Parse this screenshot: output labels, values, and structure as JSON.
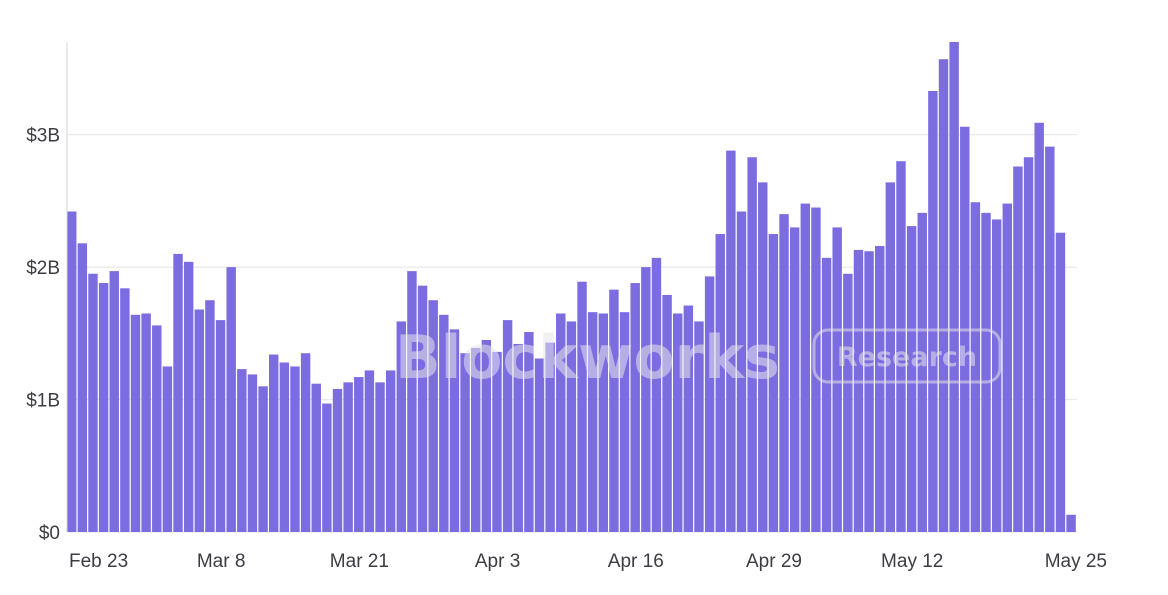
{
  "chart_data": {
    "type": "bar",
    "title": "",
    "xlabel": "",
    "ylabel": "",
    "y_unit": "USD billions",
    "ylim": [
      0,
      3.7
    ],
    "y_ticks": [
      {
        "value": 0,
        "label": "$0"
      },
      {
        "value": 1,
        "label": "$1B"
      },
      {
        "value": 2,
        "label": "$2B"
      },
      {
        "value": 3,
        "label": "$3B"
      }
    ],
    "x_ticks": [
      {
        "index": 0,
        "label": "Feb 23"
      },
      {
        "index": 14,
        "label": "Mar 8"
      },
      {
        "index": 27,
        "label": "Mar 21"
      },
      {
        "index": 40,
        "label": "Apr 3"
      },
      {
        "index": 53,
        "label": "Apr 16"
      },
      {
        "index": 66,
        "label": "Apr 29"
      },
      {
        "index": 79,
        "label": "May 12"
      },
      {
        "index": 92,
        "label": "May 25"
      }
    ],
    "bar_color": "#7b6cdf",
    "start_date": "Feb 23",
    "values": [
      2.42,
      2.18,
      1.95,
      1.88,
      1.97,
      1.84,
      1.64,
      1.65,
      1.56,
      1.25,
      2.1,
      2.04,
      1.68,
      1.75,
      1.6,
      2.0,
      1.23,
      1.19,
      1.1,
      1.34,
      1.28,
      1.25,
      1.35,
      1.12,
      0.97,
      1.08,
      1.13,
      1.17,
      1.22,
      1.13,
      1.22,
      1.59,
      1.97,
      1.86,
      1.75,
      1.64,
      1.53,
      1.35,
      1.39,
      1.45,
      1.36,
      1.6,
      1.42,
      1.51,
      1.31,
      1.43,
      1.65,
      1.59,
      1.89,
      1.66,
      1.65,
      1.83,
      1.66,
      1.88,
      2.0,
      2.07,
      1.79,
      1.65,
      1.71,
      1.59,
      1.93,
      2.25,
      2.88,
      2.42,
      2.83,
      2.64,
      2.25,
      2.4,
      2.3,
      2.48,
      2.45,
      2.07,
      2.3,
      1.95,
      2.13,
      2.12,
      2.16,
      2.64,
      2.8,
      2.31,
      2.41,
      3.33,
      3.57,
      3.7,
      3.06,
      2.49,
      2.41,
      2.36,
      2.48,
      2.76,
      2.83,
      3.09,
      2.91,
      2.26,
      0.13
    ]
  },
  "watermark": {
    "logo_text": "Blockworks",
    "badge_text": "Research"
  }
}
